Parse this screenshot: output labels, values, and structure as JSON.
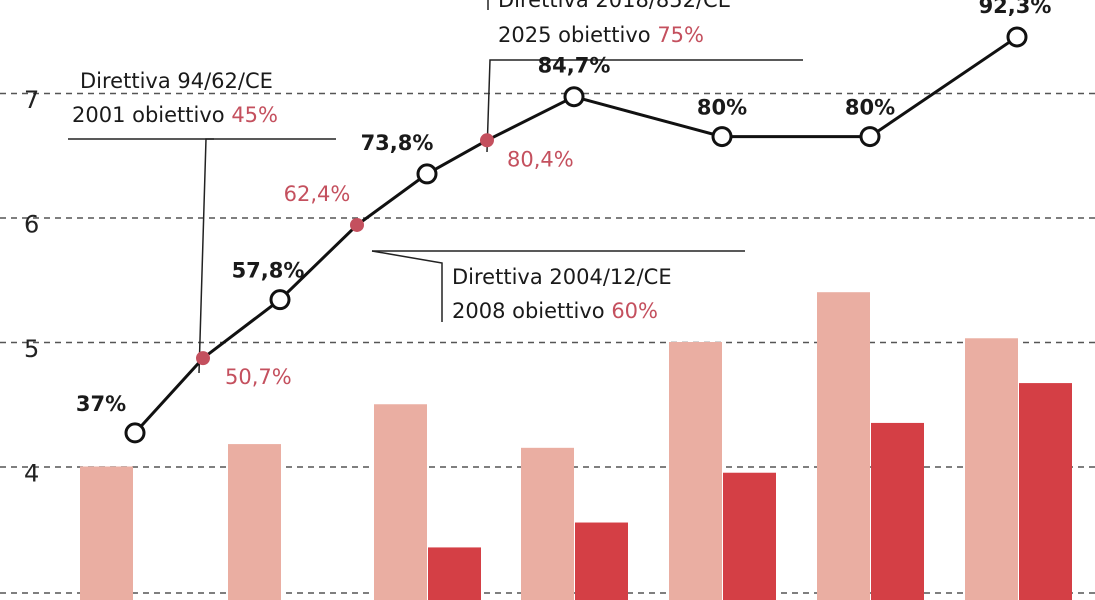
{
  "chart_data": {
    "type": "bar",
    "y_axis": {
      "ticks": [
        "4",
        "5",
        "6",
        "7"
      ],
      "tick_values": [
        4,
        5,
        6,
        7
      ],
      "ylim": [
        3.0,
        7.8
      ]
    },
    "grid": "horizontal-dashed",
    "bar_series": [
      {
        "color": "#eaaea2",
        "values": [
          4.0,
          4.18,
          4.5,
          4.15,
          5.0,
          5.4,
          5.03
        ]
      },
      {
        "color": "#d43f45",
        "values": [
          null,
          null,
          3.35,
          3.55,
          3.95,
          4.35,
          4.67
        ]
      }
    ],
    "line_series": {
      "color": "#111111",
      "points": [
        {
          "label": "37%",
          "value": 37,
          "y": 4.27,
          "kind": "open"
        },
        {
          "label": "50,7%",
          "value": 50.7,
          "y": 4.87,
          "kind": "target"
        },
        {
          "label": "57,8%",
          "value": 57.8,
          "y": 5.34,
          "kind": "open"
        },
        {
          "label": "62,4%",
          "value": 62.4,
          "y": 5.94,
          "kind": "target"
        },
        {
          "label": "73,8%",
          "value": 73.8,
          "y": 6.35,
          "kind": "open"
        },
        {
          "label": "80,4%",
          "value": 80.4,
          "y": 6.62,
          "kind": "target"
        },
        {
          "label": "84,7%",
          "value": 84.7,
          "y": 6.97,
          "kind": "open"
        },
        {
          "label": "80%",
          "value": 80,
          "y": 6.65,
          "kind": "open"
        },
        {
          "label": "80%",
          "value": 80,
          "y": 6.65,
          "kind": "open"
        },
        {
          "label": "92,3%",
          "value": 92.3,
          "y": 7.45,
          "kind": "open"
        }
      ]
    },
    "annotations": [
      {
        "line1": "Direttiva 94/62/CE",
        "line2_prefix": "2001 obiettivo ",
        "line2_value": "45%"
      },
      {
        "line1": "Direttiva 2004/12/CE",
        "line2_prefix": "2008 obiettivo ",
        "line2_value": "60%"
      },
      {
        "line1": "Direttiva 2018/852/CE",
        "line2_prefix": "2025 obiettivo ",
        "line2_value": "75%"
      }
    ]
  },
  "colors": {
    "grid": "#555555",
    "target_dot": "#c4505e",
    "target_text": "#c4505e"
  }
}
